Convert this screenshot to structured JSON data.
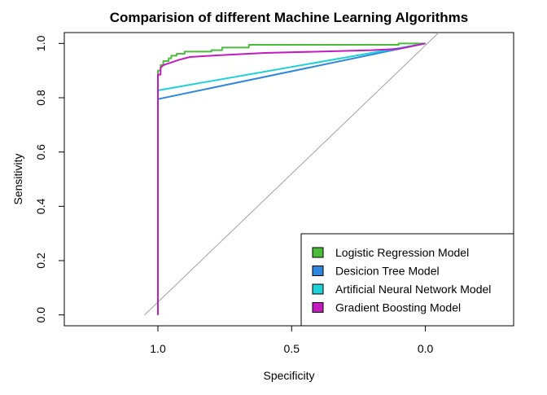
{
  "chart_data": {
    "type": "line",
    "title": "Comparision of different Machine Learning Algorithms",
    "xlabel": "Specificity",
    "ylabel": "Sensitivity",
    "x_reversed": true,
    "xlim": [
      1.35,
      -0.33
    ],
    "ylim": [
      -0.04,
      1.04
    ],
    "x_ticks": [
      1.0,
      0.5,
      0.0
    ],
    "x_tick_labels": [
      "1.0",
      "0.5",
      "0.0"
    ],
    "y_ticks": [
      0.0,
      0.2,
      0.4,
      0.6,
      0.8,
      1.0
    ],
    "y_tick_labels": [
      "0.0",
      "0.2",
      "0.4",
      "0.6",
      "0.8",
      "1.0"
    ],
    "grid": false,
    "legend_position": "bottom-right",
    "reference_line": {
      "from": [
        1.05,
        0.0
      ],
      "to": [
        -0.05,
        1.04
      ],
      "color": "#a0a0a0"
    },
    "series": [
      {
        "name": "Logistic Regression Model",
        "color": "#4cbd3a",
        "points": [
          [
            1.0,
            0.0
          ],
          [
            1.0,
            0.88
          ],
          [
            1.0,
            0.9
          ],
          [
            0.99,
            0.9
          ],
          [
            0.99,
            0.92
          ],
          [
            0.98,
            0.92
          ],
          [
            0.98,
            0.935
          ],
          [
            0.96,
            0.935
          ],
          [
            0.96,
            0.945
          ],
          [
            0.95,
            0.945
          ],
          [
            0.95,
            0.955
          ],
          [
            0.93,
            0.955
          ],
          [
            0.93,
            0.962
          ],
          [
            0.9,
            0.962
          ],
          [
            0.9,
            0.97
          ],
          [
            0.8,
            0.97
          ],
          [
            0.8,
            0.975
          ],
          [
            0.76,
            0.975
          ],
          [
            0.76,
            0.985
          ],
          [
            0.66,
            0.985
          ],
          [
            0.66,
            0.995
          ],
          [
            0.1,
            0.995
          ],
          [
            0.1,
            1.0
          ],
          [
            0.0,
            1.0
          ]
        ]
      },
      {
        "name": "Desicion Tree Model",
        "color": "#2e86de",
        "points": [
          [
            1.0,
            0.0
          ],
          [
            1.0,
            0.795
          ],
          [
            0.0,
            1.0
          ]
        ]
      },
      {
        "name": "Artificial Neural Network Model",
        "color": "#1ed1d8",
        "points": [
          [
            1.0,
            0.0
          ],
          [
            1.0,
            0.827
          ],
          [
            0.0,
            1.0
          ]
        ]
      },
      {
        "name": "Gradient Boosting Model",
        "color": "#c41bbf",
        "points": [
          [
            1.0,
            0.0
          ],
          [
            1.0,
            0.885
          ],
          [
            0.99,
            0.885
          ],
          [
            0.99,
            0.91
          ],
          [
            0.98,
            0.92
          ],
          [
            0.95,
            0.93
          ],
          [
            0.92,
            0.94
          ],
          [
            0.88,
            0.95
          ],
          [
            0.8,
            0.955
          ],
          [
            0.7,
            0.96
          ],
          [
            0.6,
            0.965
          ],
          [
            0.4,
            0.97
          ],
          [
            0.2,
            0.975
          ],
          [
            0.1,
            0.98
          ],
          [
            0.05,
            0.99
          ],
          [
            0.0,
            1.0
          ]
        ]
      }
    ]
  }
}
